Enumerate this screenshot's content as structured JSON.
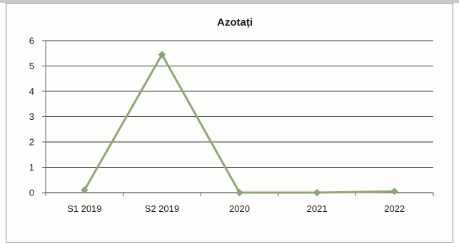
{
  "chart_data": {
    "type": "line",
    "title": "Azotați",
    "xlabel": "",
    "ylabel": "",
    "categories": [
      "S1 2019",
      "S2 2019",
      "2020",
      "2021",
      "2022"
    ],
    "series": [
      {
        "values": [
          0.1,
          5.45,
          0.0,
          0.0,
          0.05
        ],
        "color": "#8fa678",
        "marker": "diamond"
      }
    ],
    "ylim": [
      0,
      6
    ],
    "yticks": [
      "0",
      "1",
      "2",
      "3",
      "4",
      "5",
      "6"
    ],
    "grid": "horizontal",
    "legend": "none"
  }
}
